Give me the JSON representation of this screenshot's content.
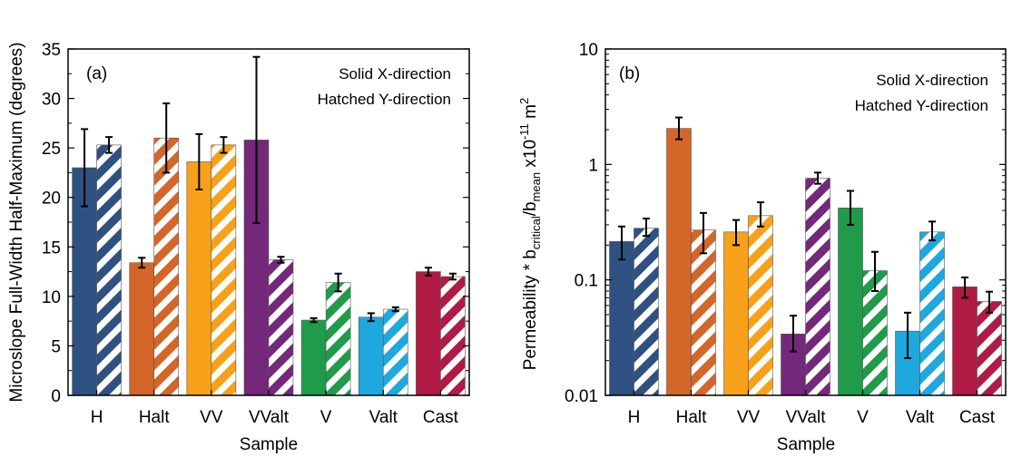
{
  "chart_data": [
    {
      "type": "bar",
      "panel_label": "(a)",
      "title": "",
      "xlabel": "Sample",
      "ylabel": "Microslope Full-Width Half-Maximum (degrees)",
      "yscale": "linear",
      "ylim": [
        0,
        35
      ],
      "yticks": [
        0,
        5,
        10,
        15,
        20,
        25,
        30,
        35
      ],
      "ytick_labels": [
        "0",
        "5",
        "10",
        "15",
        "20",
        "25",
        "30",
        "35"
      ],
      "categories": [
        "H",
        "Halt",
        "VV",
        "VValt",
        "V",
        "Valt",
        "Cast"
      ],
      "colors": [
        "#2e5181",
        "#d4662a",
        "#f7a11a",
        "#73287a",
        "#1f9b4a",
        "#1ea8de",
        "#b01a44"
      ],
      "legend": [
        "Solid X-direction",
        "Hatched Y-direction"
      ],
      "legend_position": "top-right",
      "series": [
        {
          "name": "Solid X-direction",
          "values": [
            23.0,
            13.4,
            23.6,
            25.8,
            7.6,
            7.9,
            12.5
          ],
          "errors": [
            3.9,
            0.5,
            2.8,
            8.4,
            0.2,
            0.4,
            0.4
          ]
        },
        {
          "name": "Hatched Y-direction",
          "values": [
            25.3,
            26.0,
            25.3,
            13.7,
            11.4,
            8.7,
            12.0
          ],
          "errors": [
            0.8,
            3.5,
            0.8,
            0.3,
            0.9,
            0.2,
            0.3
          ]
        }
      ]
    },
    {
      "type": "bar",
      "panel_label": "(b)",
      "title": "",
      "xlabel": "Sample",
      "ylabel_parts": {
        "main": "Permeability * b",
        "sub1": "critical",
        "mid": "/b",
        "sub2": "mean",
        "tail": " x10",
        "sup1": "-11",
        "unit": " m",
        "sup2": "2"
      },
      "yscale": "log",
      "ylim": [
        0.01,
        10
      ],
      "yticks": [
        0.01,
        0.1,
        1,
        10
      ],
      "ytick_labels": [
        "0.01",
        "0.1",
        "1",
        "10"
      ],
      "categories": [
        "H",
        "Halt",
        "VV",
        "VValt",
        "V",
        "Valt",
        "Cast"
      ],
      "colors": [
        "#2e5181",
        "#d4662a",
        "#f7a11a",
        "#73287a",
        "#1f9b4a",
        "#1ea8de",
        "#b01a44"
      ],
      "legend": [
        "Solid X-direction",
        "Hatched Y-direction"
      ],
      "legend_position": "top-right",
      "series": [
        {
          "name": "Solid X-direction",
          "values": [
            0.215,
            2.05,
            0.26,
            0.034,
            0.42,
            0.036,
            0.087
          ],
          "err_low": [
            0.15,
            1.65,
            0.2,
            0.024,
            0.3,
            0.021,
            0.07
          ],
          "err_high": [
            0.29,
            2.55,
            0.33,
            0.049,
            0.59,
            0.052,
            0.105
          ]
        },
        {
          "name": "Hatched Y-direction",
          "values": [
            0.28,
            0.27,
            0.36,
            0.76,
            0.12,
            0.26,
            0.065
          ],
          "err_low": [
            0.24,
            0.17,
            0.29,
            0.68,
            0.08,
            0.22,
            0.052
          ],
          "err_high": [
            0.34,
            0.38,
            0.47,
            0.85,
            0.175,
            0.32,
            0.079
          ]
        }
      ]
    }
  ]
}
